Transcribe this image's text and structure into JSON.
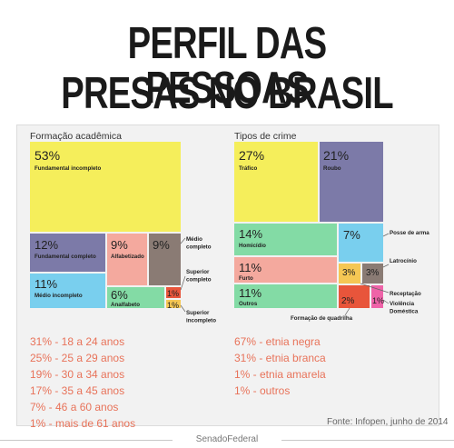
{
  "title": {
    "line1": "PERFIL DAS PESSOAS",
    "line2": "PRESAS NO BRASIL"
  },
  "colors": {
    "yellow": "#f5ee5b",
    "purple": "#7c7aa8",
    "salmon": "#f4a99e",
    "brown": "#8a7b74",
    "lightblue": "#79cfee",
    "green": "#83dba5",
    "red": "#e8553b",
    "gold": "#f5c754",
    "pink": "#ef63a8",
    "text_accent": "#e8735a"
  },
  "chart_data": [
    {
      "type": "treemap",
      "title": "Formação acadêmica",
      "items": [
        {
          "pct": "53%",
          "label": "Fundamental incompleto",
          "value": 53
        },
        {
          "pct": "12%",
          "label": "Fundamental completo",
          "value": 12
        },
        {
          "pct": "9%",
          "label": "Alfabetizado",
          "value": 9
        },
        {
          "pct": "9%",
          "label": "Médio completo",
          "value": 9
        },
        {
          "pct": "11%",
          "label": "Médio incompleto",
          "value": 11
        },
        {
          "pct": "6%",
          "label": "Analfabeto",
          "value": 6
        },
        {
          "pct": "1%",
          "label": "Superior completo",
          "value": 1
        },
        {
          "pct": "1%",
          "label": "Superior incompleto",
          "value": 1
        }
      ]
    },
    {
      "type": "treemap",
      "title": "Tipos de crime",
      "items": [
        {
          "pct": "27%",
          "label": "Tráfico",
          "value": 27
        },
        {
          "pct": "21%",
          "label": "Roubo",
          "value": 21
        },
        {
          "pct": "14%",
          "label": "Homicídio",
          "value": 14
        },
        {
          "pct": "7%",
          "label": "Posse de arma",
          "value": 7
        },
        {
          "pct": "11%",
          "label": "Furto",
          "value": 11
        },
        {
          "pct": "3%",
          "label": "Latrocínio",
          "value": 3
        },
        {
          "pct": "3%",
          "label": "Receptação",
          "value": 3
        },
        {
          "pct": "11%",
          "label": "Outros",
          "value": 11
        },
        {
          "pct": "2%",
          "label": "Formação de quadrilha",
          "value": 2
        },
        {
          "pct": "1%",
          "label": "Violência Doméstica",
          "value": 1
        }
      ]
    }
  ],
  "age_stats": [
    "31% - 18 a 24 anos",
    "25% - 25 a 29 anos",
    "19% - 30 a 34 anos",
    "17% - 35 a 45 anos",
    "7% - 46 a 60 anos",
    "1% - mais de 61 anos"
  ],
  "ethnicity_stats": [
    "67% - etnia negra",
    "31% - etnia branca",
    "1% -  etnia amarela",
    "1% - outros"
  ],
  "source": "Fonte: Infopen, junho de 2014",
  "footer": "SenadoFederal"
}
